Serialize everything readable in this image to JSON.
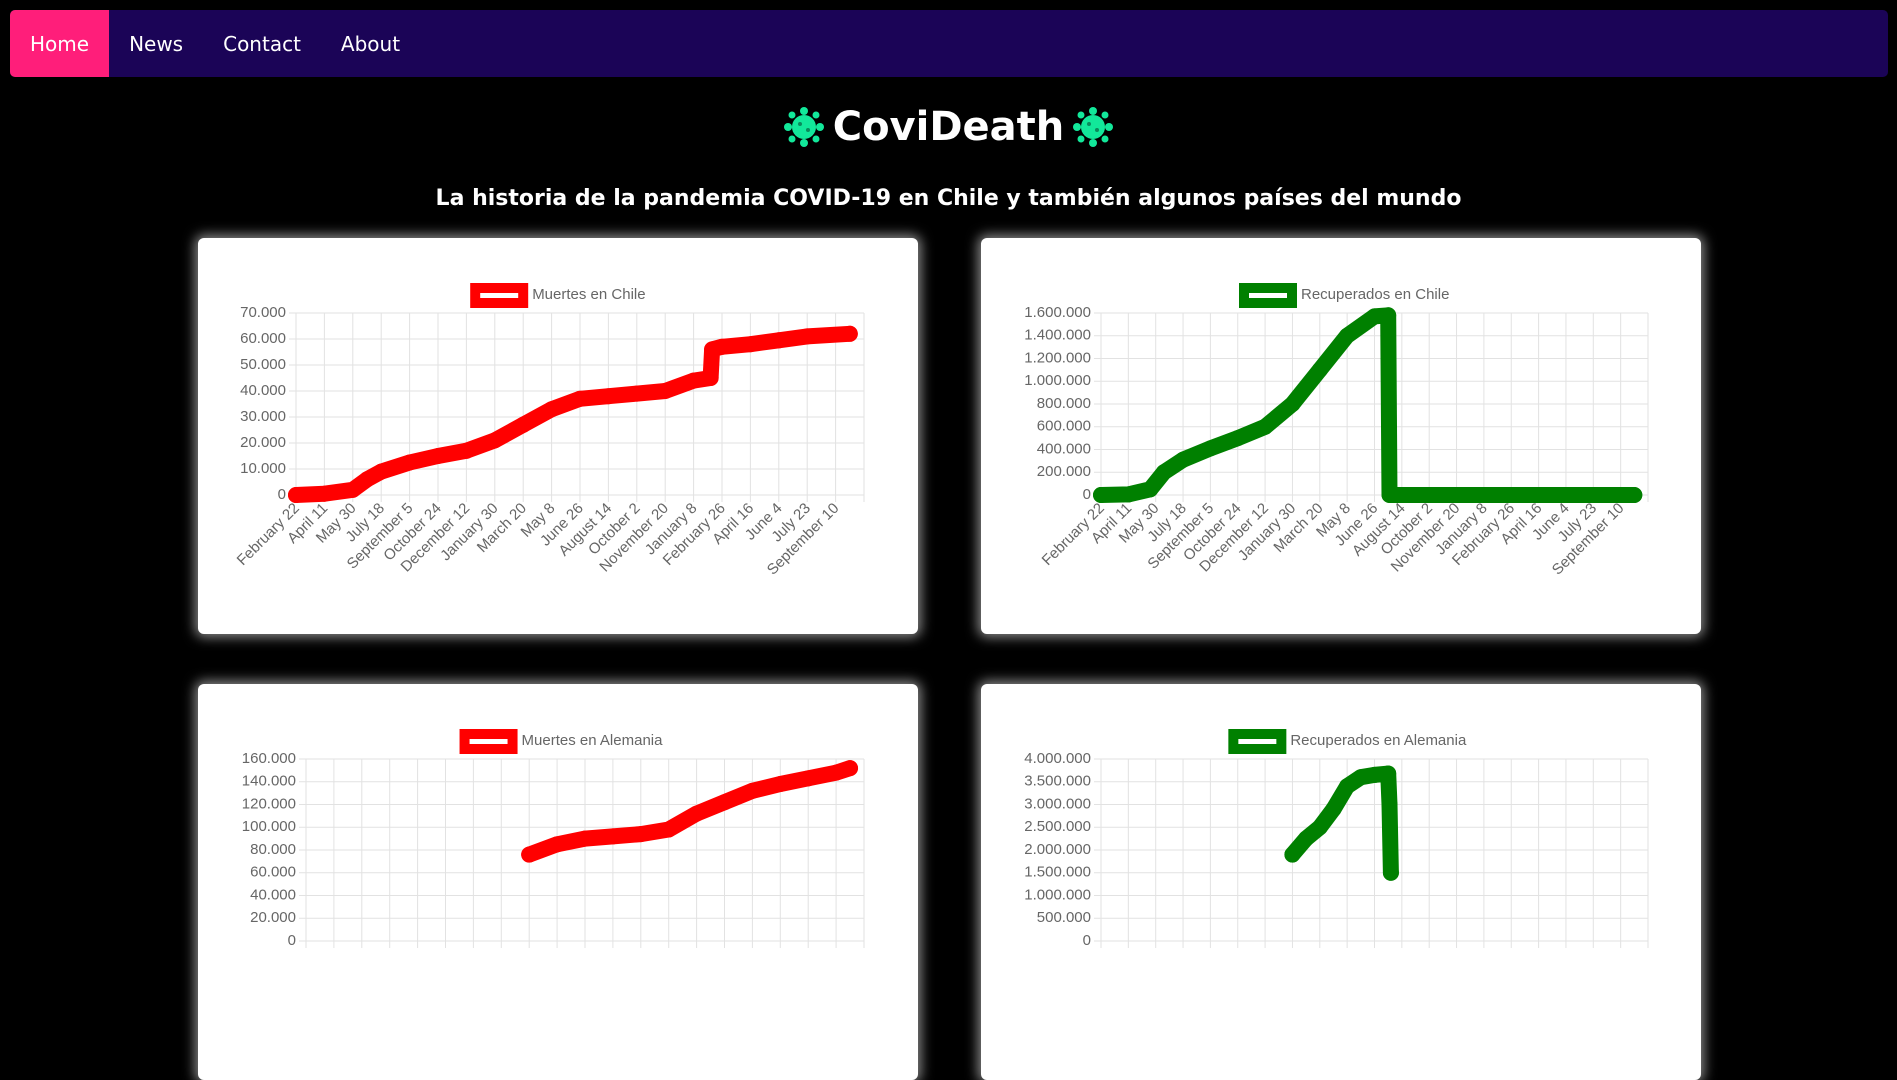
{
  "nav": {
    "items": [
      {
        "label": "Home",
        "active": true
      },
      {
        "label": "News",
        "active": false
      },
      {
        "label": "Contact",
        "active": false
      },
      {
        "label": "About",
        "active": false
      }
    ]
  },
  "header": {
    "title": "CoviDeath",
    "subtitle": "La historia de la pandemia COVID-19 en Chile y también algunos países del mundo"
  },
  "colors": {
    "accent": "#ff1e7a",
    "navbar": "#1b0457",
    "deaths": "#ff0000",
    "recovered": "#008000",
    "virus": "#12e89a"
  },
  "chart_data": [
    {
      "type": "line",
      "legend": "Muertes en Chile",
      "color": "#ff0000",
      "x_ticks": [
        "February 22",
        "April 11",
        "May 30",
        "July 18",
        "September 5",
        "October 24",
        "December 12",
        "January 30",
        "March 20",
        "May 8",
        "June 26",
        "August 14",
        "October 2",
        "November 20",
        "January 8",
        "February 26",
        "April 16",
        "June 4",
        "July 23",
        "September 10"
      ],
      "y_ticks": [
        "0",
        "10.000",
        "20.000",
        "30.000",
        "40.000",
        "50.000",
        "60.000",
        "70.000"
      ],
      "ylim": [
        0,
        70000
      ],
      "x": [
        0,
        1,
        2,
        2.5,
        3,
        4,
        5,
        6,
        7,
        8,
        9,
        10,
        11,
        12,
        13,
        14,
        14.6,
        14.65,
        15,
        16,
        17,
        18,
        19.5
      ],
      "y": [
        0,
        500,
        2000,
        6000,
        9000,
        12500,
        15000,
        17000,
        21000,
        27000,
        33000,
        37000,
        38000,
        39000,
        40000,
        44000,
        45000,
        56000,
        57000,
        58000,
        59500,
        61000,
        62000
      ]
    },
    {
      "type": "line",
      "legend": "Recuperados en Chile",
      "color": "#008000",
      "x_ticks": [
        "February 22",
        "April 11",
        "May 30",
        "July 18",
        "September 5",
        "October 24",
        "December 12",
        "January 30",
        "March 20",
        "May 8",
        "June 26",
        "August 14",
        "October 2",
        "November 20",
        "January 8",
        "February 26",
        "April 16",
        "June 4",
        "July 23",
        "September 10"
      ],
      "y_ticks": [
        "0",
        "200.000",
        "400.000",
        "600.000",
        "800.000",
        "1.000.000",
        "1.200.000",
        "1.400.000",
        "1.600.000"
      ],
      "ylim": [
        0,
        1600000
      ],
      "x": [
        0,
        1,
        1.8,
        2.3,
        3,
        4,
        5,
        6,
        7,
        8,
        9,
        10,
        10.5,
        10.55,
        11,
        15,
        19.5
      ],
      "y": [
        0,
        5000,
        50000,
        200000,
        310000,
        410000,
        500000,
        600000,
        800000,
        1100000,
        1400000,
        1570000,
        1580000,
        0,
        0,
        0,
        0
      ]
    },
    {
      "type": "line",
      "legend": "Muertes en Alemania",
      "color": "#ff0000",
      "x_ticks": [],
      "y_ticks": [
        "0",
        "20.000",
        "40.000",
        "60.000",
        "80.000",
        "100.000",
        "120.000",
        "140.000",
        "160.000"
      ],
      "ylim": [
        0,
        160000
      ],
      "x": [
        8,
        9,
        10,
        11,
        12,
        13,
        14,
        15,
        16,
        17,
        18,
        19,
        19.5
      ],
      "y": [
        76000,
        85000,
        90000,
        92000,
        94000,
        98000,
        112000,
        122000,
        132000,
        138000,
        143000,
        148000,
        152000
      ]
    },
    {
      "type": "line",
      "legend": "Recuperados en Alemania",
      "color": "#008000",
      "x_ticks": [],
      "y_ticks": [
        "0",
        "500.000",
        "1.000.000",
        "1.500.000",
        "2.000.000",
        "2.500.000",
        "3.000.000",
        "3.500.000",
        "4.000.000"
      ],
      "ylim": [
        0,
        4000000
      ],
      "x": [
        7,
        7.5,
        8,
        8.5,
        9,
        9.5,
        10,
        10.5,
        10.55,
        10.6
      ],
      "y": [
        1900000,
        2250000,
        2500000,
        2900000,
        3400000,
        3600000,
        3650000,
        3680000,
        3000000,
        1500000
      ]
    }
  ]
}
